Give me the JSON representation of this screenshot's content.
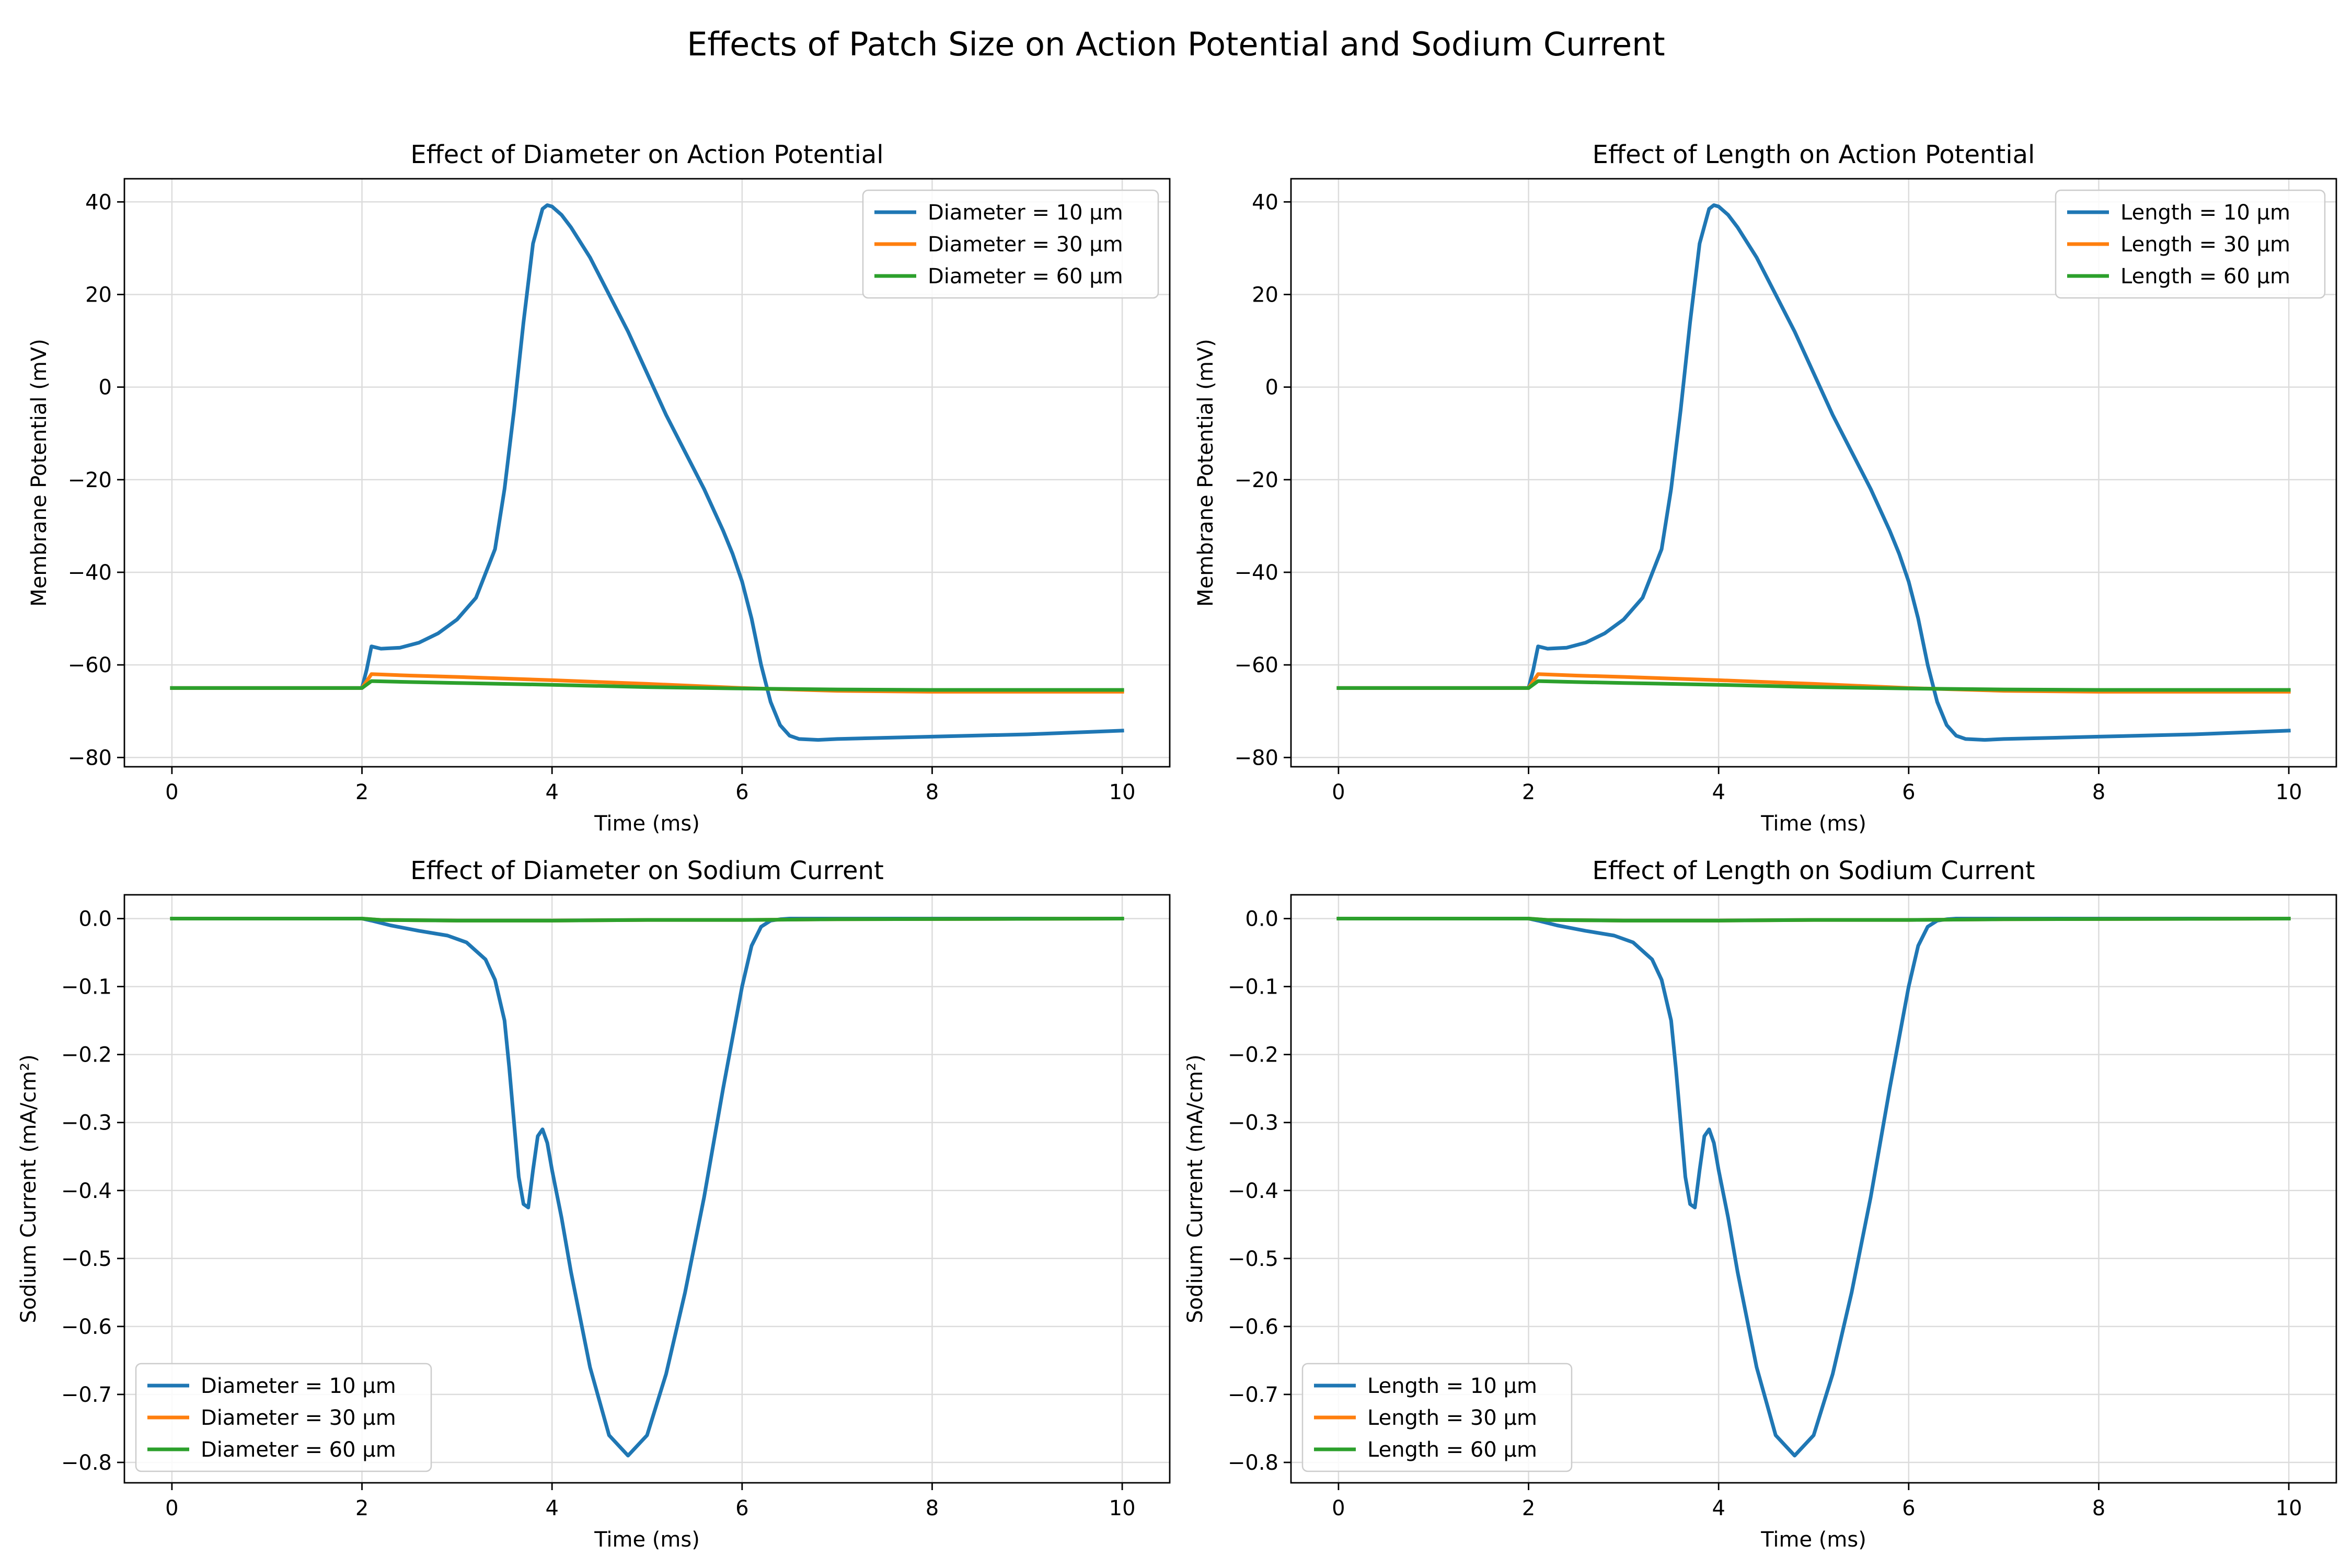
{
  "figure": {
    "title": "Effects of Patch Size on Action Potential and Sodium Current"
  },
  "colors": {
    "blue": "#1f77b4",
    "orange": "#ff7f0e",
    "green": "#2ca02c"
  },
  "chart_data": [
    {
      "type": "line",
      "title": "Effect of Diameter on Action Potential",
      "xlabel": "Time (ms)",
      "ylabel": "Membrane Potential (mV)",
      "xlim": [
        -0.5,
        10.5
      ],
      "ylim": [
        -82,
        45
      ],
      "xticks": [
        0,
        2,
        4,
        6,
        8,
        10
      ],
      "yticks": [
        -80,
        -60,
        -40,
        -20,
        0,
        20,
        40
      ],
      "grid": true,
      "legend_position": "upper right",
      "series": [
        {
          "name": "Diameter = 10 μm",
          "color": "#1f77b4",
          "x": [
            0,
            2,
            2.05,
            2.1,
            2.2,
            2.4,
            2.6,
            2.8,
            3.0,
            3.2,
            3.4,
            3.5,
            3.6,
            3.7,
            3.8,
            3.9,
            3.95,
            4.0,
            4.1,
            4.2,
            4.4,
            4.6,
            4.8,
            5.0,
            5.2,
            5.4,
            5.6,
            5.8,
            5.9,
            6.0,
            6.1,
            6.2,
            6.3,
            6.4,
            6.5,
            6.6,
            6.8,
            7,
            8,
            9,
            10
          ],
          "y": [
            -65,
            -65,
            -61,
            -56,
            -56.5,
            -56.3,
            -55.2,
            -53.2,
            -50.2,
            -45.5,
            -35,
            -22,
            -5,
            14,
            31,
            38.5,
            39.3,
            39,
            37.2,
            34.5,
            28,
            20,
            12,
            3,
            -6,
            -14,
            -22,
            -31,
            -36,
            -42,
            -50,
            -60,
            -68,
            -73,
            -75.3,
            -76,
            -76.2,
            -76,
            -75.5,
            -75,
            -74.2
          ]
        },
        {
          "name": "Diameter = 30 μm",
          "color": "#ff7f0e",
          "x": [
            0,
            2,
            2.1,
            2.5,
            3,
            4,
            5,
            6,
            7,
            8,
            9,
            10
          ],
          "y": [
            -65,
            -65,
            -62,
            -62.3,
            -62.6,
            -63.3,
            -64.1,
            -65,
            -65.6,
            -65.8,
            -65.8,
            -65.8
          ]
        },
        {
          "name": "Diameter = 60 μm",
          "color": "#2ca02c",
          "x": [
            0,
            2,
            2.1,
            2.5,
            3,
            4,
            5,
            6,
            7,
            8,
            9,
            10
          ],
          "y": [
            -65,
            -65,
            -63.5,
            -63.7,
            -63.9,
            -64.3,
            -64.8,
            -65.1,
            -65.3,
            -65.4,
            -65.4,
            -65.4
          ]
        }
      ]
    },
    {
      "type": "line",
      "title": "Effect of Length on Action Potential",
      "xlabel": "Time (ms)",
      "ylabel": "Membrane Potential (mV)",
      "xlim": [
        -0.5,
        10.5
      ],
      "ylim": [
        -82,
        45
      ],
      "xticks": [
        0,
        2,
        4,
        6,
        8,
        10
      ],
      "yticks": [
        -80,
        -60,
        -40,
        -20,
        0,
        20,
        40
      ],
      "grid": true,
      "legend_position": "upper right",
      "series": [
        {
          "name": "Length = 10 μm",
          "color": "#1f77b4",
          "x": [
            0,
            2,
            2.05,
            2.1,
            2.2,
            2.4,
            2.6,
            2.8,
            3.0,
            3.2,
            3.4,
            3.5,
            3.6,
            3.7,
            3.8,
            3.9,
            3.95,
            4.0,
            4.1,
            4.2,
            4.4,
            4.6,
            4.8,
            5.0,
            5.2,
            5.4,
            5.6,
            5.8,
            5.9,
            6.0,
            6.1,
            6.2,
            6.3,
            6.4,
            6.5,
            6.6,
            6.8,
            7,
            8,
            9,
            10
          ],
          "y": [
            -65,
            -65,
            -61,
            -56,
            -56.5,
            -56.3,
            -55.2,
            -53.2,
            -50.2,
            -45.5,
            -35,
            -22,
            -5,
            14,
            31,
            38.5,
            39.3,
            39,
            37.2,
            34.5,
            28,
            20,
            12,
            3,
            -6,
            -14,
            -22,
            -31,
            -36,
            -42,
            -50,
            -60,
            -68,
            -73,
            -75.3,
            -76,
            -76.2,
            -76,
            -75.5,
            -75,
            -74.2
          ]
        },
        {
          "name": "Length = 30 μm",
          "color": "#ff7f0e",
          "x": [
            0,
            2,
            2.1,
            2.5,
            3,
            4,
            5,
            6,
            7,
            8,
            9,
            10
          ],
          "y": [
            -65,
            -65,
            -62,
            -62.3,
            -62.6,
            -63.3,
            -64.1,
            -65,
            -65.6,
            -65.8,
            -65.8,
            -65.8
          ]
        },
        {
          "name": "Length = 60 μm",
          "color": "#2ca02c",
          "x": [
            0,
            2,
            2.1,
            2.5,
            3,
            4,
            5,
            6,
            7,
            8,
            9,
            10
          ],
          "y": [
            -65,
            -65,
            -63.5,
            -63.7,
            -63.9,
            -64.3,
            -64.8,
            -65.1,
            -65.3,
            -65.4,
            -65.4,
            -65.4
          ]
        }
      ]
    },
    {
      "type": "line",
      "title": "Effect of Diameter on Sodium Current",
      "xlabel": "Time (ms)",
      "ylabel": "Sodium Current (mA/cm²)",
      "xlim": [
        -0.5,
        10.5
      ],
      "ylim": [
        -0.83,
        0.035
      ],
      "xticks": [
        0,
        2,
        4,
        6,
        8,
        10
      ],
      "yticks": [
        0.0,
        -0.1,
        -0.2,
        -0.3,
        -0.4,
        -0.5,
        -0.6,
        -0.7,
        -0.8
      ],
      "grid": true,
      "legend_position": "lower left",
      "series": [
        {
          "name": "Diameter = 10 μm",
          "color": "#1f77b4",
          "x": [
            0,
            2,
            2.1,
            2.3,
            2.6,
            2.9,
            3.1,
            3.3,
            3.4,
            3.5,
            3.55,
            3.6,
            3.65,
            3.7,
            3.75,
            3.8,
            3.85,
            3.9,
            3.95,
            4.0,
            4.1,
            4.2,
            4.4,
            4.6,
            4.8,
            5.0,
            5.2,
            5.4,
            5.6,
            5.8,
            6.0,
            6.1,
            6.2,
            6.3,
            6.4,
            6.5,
            7,
            8,
            10
          ],
          "y": [
            0,
            0,
            -0.003,
            -0.01,
            -0.018,
            -0.025,
            -0.035,
            -0.06,
            -0.09,
            -0.15,
            -0.22,
            -0.3,
            -0.38,
            -0.42,
            -0.425,
            -0.37,
            -0.32,
            -0.31,
            -0.33,
            -0.37,
            -0.44,
            -0.52,
            -0.66,
            -0.76,
            -0.79,
            -0.76,
            -0.67,
            -0.55,
            -0.41,
            -0.25,
            -0.1,
            -0.04,
            -0.012,
            -0.003,
            -0.001,
            0,
            0,
            0,
            0
          ]
        },
        {
          "name": "Diameter = 30 μm",
          "color": "#ff7f0e",
          "x": [
            0,
            2,
            2.2,
            3,
            4,
            5,
            6,
            7,
            10
          ],
          "y": [
            0,
            0,
            -0.002,
            -0.003,
            -0.003,
            -0.002,
            -0.002,
            -0.001,
            0
          ]
        },
        {
          "name": "Diameter = 60 μm",
          "color": "#2ca02c",
          "x": [
            0,
            2,
            2.2,
            3,
            4,
            5,
            6,
            7,
            10
          ],
          "y": [
            0,
            0,
            -0.002,
            -0.003,
            -0.003,
            -0.002,
            -0.002,
            -0.001,
            0
          ]
        }
      ]
    },
    {
      "type": "line",
      "title": "Effect of Length on Sodium Current",
      "xlabel": "Time (ms)",
      "ylabel": "Sodium Current (mA/cm²)",
      "xlim": [
        -0.5,
        10.5
      ],
      "ylim": [
        -0.83,
        0.035
      ],
      "xticks": [
        0,
        2,
        4,
        6,
        8,
        10
      ],
      "yticks": [
        0.0,
        -0.1,
        -0.2,
        -0.3,
        -0.4,
        -0.5,
        -0.6,
        -0.7,
        -0.8
      ],
      "grid": true,
      "legend_position": "lower left",
      "series": [
        {
          "name": "Length = 10 μm",
          "color": "#1f77b4",
          "x": [
            0,
            2,
            2.1,
            2.3,
            2.6,
            2.9,
            3.1,
            3.3,
            3.4,
            3.5,
            3.55,
            3.6,
            3.65,
            3.7,
            3.75,
            3.8,
            3.85,
            3.9,
            3.95,
            4.0,
            4.1,
            4.2,
            4.4,
            4.6,
            4.8,
            5.0,
            5.2,
            5.4,
            5.6,
            5.8,
            6.0,
            6.1,
            6.2,
            6.3,
            6.4,
            6.5,
            7,
            8,
            10
          ],
          "y": [
            0,
            0,
            -0.003,
            -0.01,
            -0.018,
            -0.025,
            -0.035,
            -0.06,
            -0.09,
            -0.15,
            -0.22,
            -0.3,
            -0.38,
            -0.42,
            -0.425,
            -0.37,
            -0.32,
            -0.31,
            -0.33,
            -0.37,
            -0.44,
            -0.52,
            -0.66,
            -0.76,
            -0.79,
            -0.76,
            -0.67,
            -0.55,
            -0.41,
            -0.25,
            -0.1,
            -0.04,
            -0.012,
            -0.003,
            -0.001,
            0,
            0,
            0,
            0
          ]
        },
        {
          "name": "Length = 30 μm",
          "color": "#ff7f0e",
          "x": [
            0,
            2,
            2.2,
            3,
            4,
            5,
            6,
            7,
            10
          ],
          "y": [
            0,
            0,
            -0.002,
            -0.003,
            -0.003,
            -0.002,
            -0.002,
            -0.001,
            0
          ]
        },
        {
          "name": "Length = 60 μm",
          "color": "#2ca02c",
          "x": [
            0,
            2,
            2.2,
            3,
            4,
            5,
            6,
            7,
            10
          ],
          "y": [
            0,
            0,
            -0.002,
            -0.003,
            -0.003,
            -0.002,
            -0.002,
            -0.001,
            0
          ]
        }
      ]
    }
  ]
}
